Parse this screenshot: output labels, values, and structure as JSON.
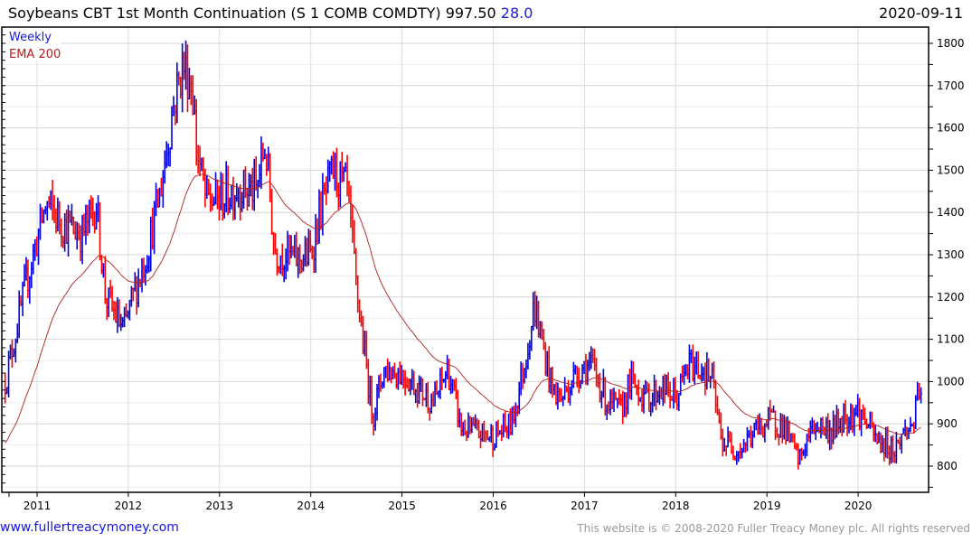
{
  "header": {
    "title": "Soybeans CBT 1st Month Continuation (S 1 COMB COMDTY) 997.50",
    "change": "28.0",
    "date": "2020-09-11"
  },
  "footer": {
    "link": "www.fullertreacymoney.com",
    "copyright": "This website is © 2008-2020 Fuller Treacy Money plc. All rights reserved"
  },
  "colors": {
    "up": "#0000e0",
    "down": "#ff0000",
    "ema": "#b02020"
  },
  "chart_data": {
    "type": "ohlc-bar",
    "title": "Soybeans CBT 1st Month Continuation (S 1 COMB COMDTY)",
    "legend": [
      "Weekly",
      "EMA 200"
    ],
    "x_ticks": [
      "2011",
      "2012",
      "2013",
      "2014",
      "2015",
      "2016",
      "2017",
      "2018",
      "2019",
      "2020"
    ],
    "xlim": [
      2010.62,
      2020.78
    ],
    "y_ticks": [
      800,
      900,
      1000,
      1100,
      1200,
      1300,
      1400,
      1500,
      1600,
      1700,
      1800
    ],
    "ylim": [
      740,
      1840
    ],
    "ema_period": 200,
    "last": 997.5,
    "approx_close_path": [
      [
        2010.65,
        1000
      ],
      [
        2010.75,
        1100
      ],
      [
        2010.9,
        1250
      ],
      [
        2011.05,
        1380
      ],
      [
        2011.1,
        1420
      ],
      [
        2011.3,
        1370
      ],
      [
        2011.5,
        1350
      ],
      [
        2011.65,
        1420
      ],
      [
        2011.75,
        1200
      ],
      [
        2011.95,
        1120
      ],
      [
        2012.05,
        1200
      ],
      [
        2012.2,
        1300
      ],
      [
        2012.35,
        1450
      ],
      [
        2012.5,
        1660
      ],
      [
        2012.6,
        1750
      ],
      [
        2012.7,
        1700
      ],
      [
        2012.75,
        1550
      ],
      [
        2012.85,
        1430
      ],
      [
        2013.0,
        1430
      ],
      [
        2013.2,
        1460
      ],
      [
        2013.4,
        1450
      ],
      [
        2013.5,
        1560
      ],
      [
        2013.55,
        1450
      ],
      [
        2013.6,
        1310
      ],
      [
        2013.75,
        1300
      ],
      [
        2013.85,
        1290
      ],
      [
        2014.0,
        1300
      ],
      [
        2014.1,
        1400
      ],
      [
        2014.25,
        1500
      ],
      [
        2014.4,
        1450
      ],
      [
        2014.5,
        1220
      ],
      [
        2014.6,
        1050
      ],
      [
        2014.68,
        920
      ],
      [
        2014.8,
        1030
      ],
      [
        2015.0,
        1020
      ],
      [
        2015.2,
        980
      ],
      [
        2015.35,
        950
      ],
      [
        2015.5,
        1030
      ],
      [
        2015.65,
        890
      ],
      [
        2015.8,
        880
      ],
      [
        2016.0,
        870
      ],
      [
        2016.2,
        900
      ],
      [
        2016.35,
        1050
      ],
      [
        2016.45,
        1180
      ],
      [
        2016.55,
        1080
      ],
      [
        2016.65,
        980
      ],
      [
        2016.75,
        960
      ],
      [
        2016.85,
        1000
      ],
      [
        2017.0,
        1040
      ],
      [
        2017.1,
        1030
      ],
      [
        2017.25,
        950
      ],
      [
        2017.4,
        930
      ],
      [
        2017.5,
        1000
      ],
      [
        2017.7,
        960
      ],
      [
        2017.85,
        985
      ],
      [
        2018.0,
        960
      ],
      [
        2018.15,
        1040
      ],
      [
        2018.3,
        1030
      ],
      [
        2018.4,
        1000
      ],
      [
        2018.5,
        860
      ],
      [
        2018.7,
        840
      ],
      [
        2018.9,
        890
      ],
      [
        2019.05,
        910
      ],
      [
        2019.2,
        890
      ],
      [
        2019.35,
        810
      ],
      [
        2019.45,
        870
      ],
      [
        2019.55,
        900
      ],
      [
        2019.7,
        880
      ],
      [
        2019.85,
        920
      ],
      [
        2020.0,
        930
      ],
      [
        2020.1,
        900
      ],
      [
        2020.2,
        860
      ],
      [
        2020.4,
        840
      ],
      [
        2020.5,
        880
      ],
      [
        2020.6,
        900
      ],
      [
        2020.7,
        997.5
      ]
    ]
  }
}
